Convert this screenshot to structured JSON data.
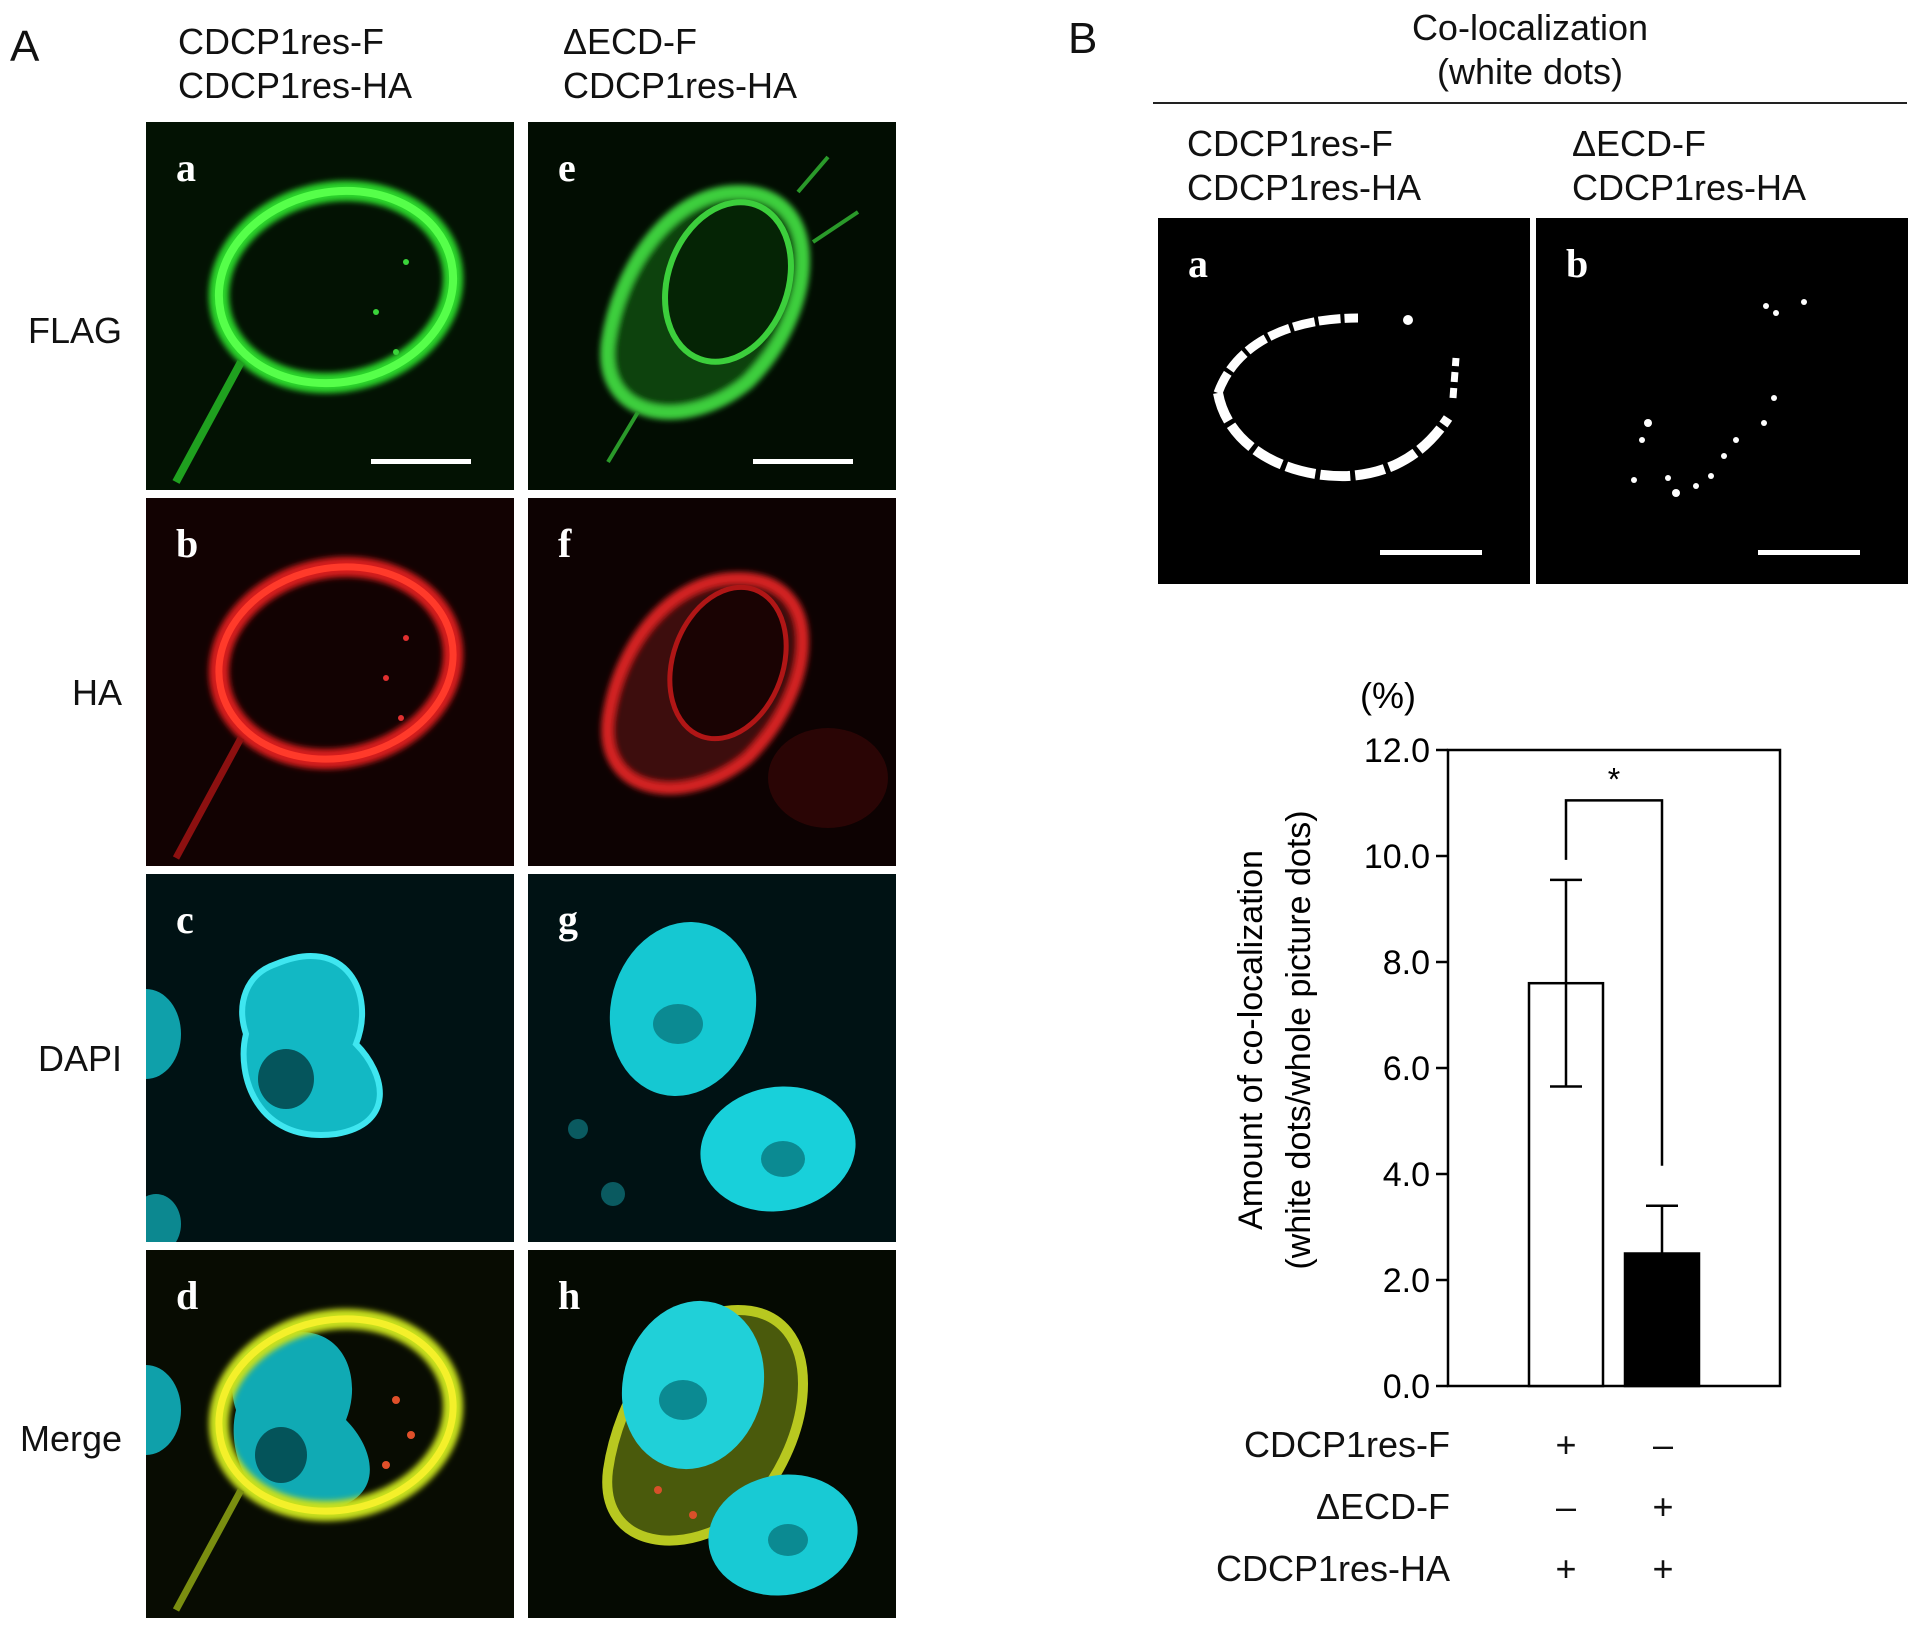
{
  "panelA": {
    "letter": "A",
    "columns": [
      {
        "line1": "CDCP1res-F",
        "line2": "CDCP1res-HA"
      },
      {
        "line1": "ΔECD-F",
        "line2": "CDCP1res-HA"
      }
    ],
    "rows": [
      "FLAG",
      "HA",
      "DAPI",
      "Merge"
    ],
    "subpanels": [
      "a",
      "b",
      "c",
      "d",
      "e",
      "f",
      "g",
      "h"
    ]
  },
  "panelB": {
    "letter": "B",
    "title_line1": "Co-localization",
    "title_line2": "(white dots)",
    "columns": [
      {
        "line1": "CDCP1res-F",
        "line2": "CDCP1res-HA"
      },
      {
        "line1": "ΔECD-F",
        "line2": "CDCP1res-HA"
      }
    ],
    "subpanels": [
      "a",
      "b"
    ]
  },
  "chart_data": {
    "type": "bar",
    "unit_label": "(%)",
    "ylabel_line1": "Amount of co-localization",
    "ylabel_line2": "(white dots/whole picture dots)",
    "ylim": [
      0,
      12
    ],
    "yticks": [
      "0.0",
      "2.0",
      "4.0",
      "6.0",
      "8.0",
      "10.0",
      "12.0"
    ],
    "values": [
      7.6,
      2.5
    ],
    "errors": [
      1.95,
      0.9
    ],
    "bar_colors": [
      "#ffffff",
      "#000000"
    ],
    "significance": "*",
    "condition_rows": [
      {
        "label": "CDCP1res-F",
        "signs": [
          "+",
          "–"
        ]
      },
      {
        "label": "ΔECD-F",
        "signs": [
          "–",
          "+"
        ]
      },
      {
        "label": "CDCP1res-HA",
        "signs": [
          "+",
          "+"
        ]
      }
    ]
  }
}
